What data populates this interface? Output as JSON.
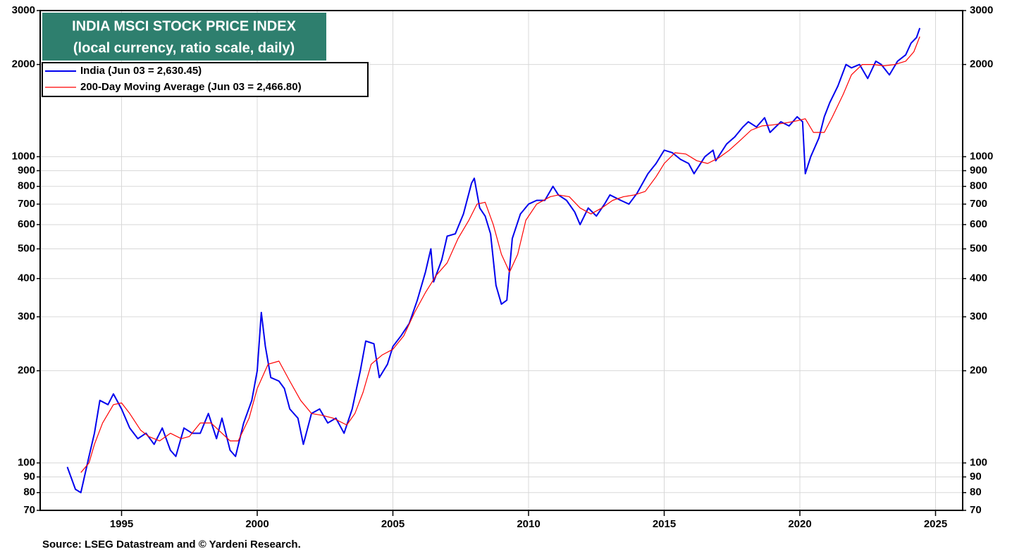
{
  "chart_data": {
    "type": "line",
    "title": "INDIA MSCI STOCK PRICE INDEX",
    "subtitle": "(local currency, ratio scale, daily)",
    "source": "Source: LSEG Datastream and © Yardeni Research.",
    "log_scale": true,
    "grid": true,
    "legend_position": "upper-left",
    "xlim": [
      1992,
      2026
    ],
    "xticks": [
      1995,
      2000,
      2005,
      2010,
      2015,
      2020,
      2025
    ],
    "ylim": [
      70,
      3000
    ],
    "yticks": [
      70,
      80,
      90,
      100,
      200,
      300,
      400,
      500,
      600,
      700,
      800,
      900,
      1000,
      2000,
      3000
    ],
    "series": [
      {
        "name": "India (Jun 03 = 2,630.45)",
        "color": "#0000ee",
        "x": [
          1993.0,
          1993.3,
          1993.5,
          1993.8,
          1994.0,
          1994.2,
          1994.5,
          1994.7,
          1995.0,
          1995.3,
          1995.6,
          1995.9,
          1996.2,
          1996.5,
          1996.8,
          1997.0,
          1997.3,
          1997.6,
          1997.9,
          1998.2,
          1998.5,
          1998.7,
          1999.0,
          1999.2,
          1999.5,
          1999.8,
          2000.0,
          2000.15,
          2000.3,
          2000.5,
          2000.8,
          2001.0,
          2001.2,
          2001.5,
          2001.7,
          2002.0,
          2002.3,
          2002.6,
          2002.9,
          2003.2,
          2003.5,
          2003.8,
          2004.0,
          2004.3,
          2004.5,
          2004.8,
          2005.0,
          2005.3,
          2005.6,
          2005.9,
          2006.2,
          2006.4,
          2006.5,
          2006.8,
          2007.0,
          2007.3,
          2007.6,
          2007.9,
          2008.0,
          2008.2,
          2008.4,
          2008.6,
          2008.8,
          2009.0,
          2009.2,
          2009.4,
          2009.7,
          2010.0,
          2010.3,
          2010.6,
          2010.9,
          2011.1,
          2011.4,
          2011.7,
          2011.9,
          2012.2,
          2012.5,
          2012.8,
          2013.0,
          2013.4,
          2013.7,
          2014.0,
          2014.4,
          2014.7,
          2015.0,
          2015.3,
          2015.6,
          2015.9,
          2016.1,
          2016.5,
          2016.8,
          2016.9,
          2017.3,
          2017.6,
          2017.9,
          2018.1,
          2018.4,
          2018.7,
          2018.9,
          2019.3,
          2019.6,
          2019.9,
          2020.1,
          2020.2,
          2020.4,
          2020.7,
          2020.9,
          2021.1,
          2021.4,
          2021.7,
          2021.9,
          2022.2,
          2022.5,
          2022.8,
          2023.0,
          2023.3,
          2023.6,
          2023.9,
          2024.1,
          2024.3,
          2024.42
        ],
        "values": [
          97,
          82,
          80,
          105,
          125,
          160,
          155,
          168,
          150,
          130,
          120,
          125,
          115,
          130,
          110,
          105,
          130,
          125,
          125,
          145,
          120,
          140,
          110,
          105,
          135,
          160,
          200,
          310,
          240,
          190,
          185,
          175,
          150,
          140,
          115,
          145,
          150,
          135,
          140,
          125,
          150,
          200,
          250,
          245,
          190,
          210,
          240,
          260,
          285,
          340,
          420,
          500,
          390,
          460,
          550,
          560,
          650,
          820,
          850,
          680,
          640,
          560,
          380,
          330,
          340,
          540,
          650,
          700,
          720,
          720,
          800,
          750,
          720,
          660,
          600,
          680,
          640,
          700,
          750,
          720,
          700,
          760,
          880,
          950,
          1050,
          1030,
          980,
          950,
          880,
          1000,
          1050,
          970,
          1100,
          1160,
          1250,
          1300,
          1250,
          1340,
          1200,
          1300,
          1260,
          1350,
          1300,
          880,
          1000,
          1150,
          1350,
          1500,
          1700,
          2000,
          1950,
          2000,
          1800,
          2050,
          2000,
          1850,
          2050,
          2150,
          2350,
          2450,
          2630
        ]
      },
      {
        "name": "200-Day Moving Average (Jun 03 = 2,466.80)",
        "color": "#ff0000",
        "x": [
          1993.5,
          1993.8,
          1994.0,
          1994.3,
          1994.7,
          1995.0,
          1995.3,
          1995.7,
          1996.0,
          1996.4,
          1996.8,
          1997.2,
          1997.5,
          1997.9,
          1998.3,
          1998.7,
          1999.0,
          1999.3,
          1999.7,
          2000.0,
          2000.4,
          2000.8,
          2001.2,
          2001.6,
          2002.0,
          2002.4,
          2002.8,
          2003.3,
          2003.6,
          2003.9,
          2004.2,
          2004.6,
          2005.0,
          2005.4,
          2005.8,
          2006.2,
          2006.6,
          2007.0,
          2007.4,
          2007.8,
          2008.1,
          2008.4,
          2008.7,
          2009.0,
          2009.3,
          2009.6,
          2009.9,
          2010.3,
          2010.8,
          2011.1,
          2011.5,
          2011.9,
          2012.3,
          2012.7,
          2013.1,
          2013.5,
          2013.9,
          2014.3,
          2014.7,
          2015.0,
          2015.4,
          2015.8,
          2016.2,
          2016.6,
          2017.0,
          2017.4,
          2017.8,
          2018.2,
          2018.6,
          2019.0,
          2019.5,
          2019.9,
          2020.2,
          2020.5,
          2020.9,
          2021.2,
          2021.6,
          2021.9,
          2022.3,
          2022.7,
          2023.1,
          2023.5,
          2023.9,
          2024.2,
          2024.42
        ],
        "values": [
          93,
          100,
          115,
          135,
          155,
          157,
          145,
          128,
          122,
          118,
          125,
          120,
          122,
          135,
          135,
          125,
          118,
          118,
          140,
          175,
          210,
          215,
          185,
          160,
          145,
          143,
          140,
          133,
          145,
          170,
          210,
          225,
          235,
          260,
          310,
          360,
          410,
          450,
          540,
          620,
          700,
          710,
          600,
          480,
          420,
          480,
          620,
          700,
          740,
          750,
          740,
          680,
          650,
          680,
          720,
          740,
          750,
          770,
          860,
          950,
          1030,
          1020,
          970,
          950,
          990,
          1050,
          1130,
          1220,
          1260,
          1270,
          1290,
          1310,
          1330,
          1200,
          1200,
          1350,
          1600,
          1850,
          2000,
          2000,
          1980,
          2000,
          2050,
          2200,
          2466.8
        ]
      }
    ]
  }
}
